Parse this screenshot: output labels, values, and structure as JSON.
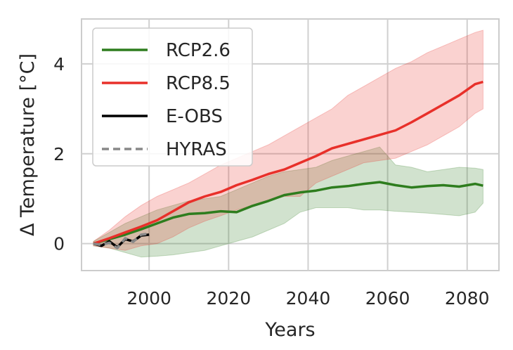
{
  "chart_data": {
    "type": "line",
    "title": "",
    "xlabel": "Years",
    "ylabel": "Δ Temperature [°C]",
    "xlim": [
      1983,
      2088
    ],
    "ylim": [
      -0.6,
      5.0
    ],
    "xticks": [
      2000,
      2020,
      2040,
      2060,
      2080
    ],
    "yticks": [
      0,
      2,
      4
    ],
    "grid": true,
    "legend_position": "top-left",
    "series": [
      {
        "name": "RCP2.6",
        "color": "#2e7d1e",
        "style": "solid",
        "x": [
          1986,
          1990,
          1994,
          1998,
          2002,
          2006,
          2010,
          2014,
          2018,
          2022,
          2026,
          2030,
          2034,
          2038,
          2042,
          2046,
          2050,
          2054,
          2058,
          2062,
          2066,
          2070,
          2074,
          2078,
          2082,
          2084
        ],
        "y": [
          0.0,
          0.1,
          0.2,
          0.32,
          0.45,
          0.58,
          0.66,
          0.68,
          0.72,
          0.7,
          0.84,
          0.95,
          1.08,
          1.14,
          1.18,
          1.25,
          1.28,
          1.33,
          1.37,
          1.3,
          1.25,
          1.28,
          1.3,
          1.27,
          1.33,
          1.29
        ],
        "band_lower": [
          -0.05,
          -0.1,
          -0.2,
          -0.3,
          -0.28,
          -0.25,
          -0.2,
          -0.15,
          -0.05,
          0.05,
          0.15,
          0.3,
          0.45,
          0.7,
          0.8,
          0.8,
          0.8,
          0.75,
          0.75,
          0.72,
          0.7,
          0.68,
          0.65,
          0.62,
          0.7,
          0.9
        ],
        "band_upper": [
          0.05,
          0.25,
          0.45,
          0.6,
          0.75,
          0.85,
          0.95,
          1.0,
          1.05,
          1.2,
          1.35,
          1.5,
          1.6,
          1.65,
          1.7,
          1.85,
          1.95,
          2.05,
          2.15,
          1.75,
          1.7,
          1.6,
          1.65,
          1.7,
          1.68,
          1.65
        ]
      },
      {
        "name": "RCP8.5",
        "color": "#e8302a",
        "style": "solid",
        "x": [
          1986,
          1990,
          1994,
          1998,
          2002,
          2006,
          2010,
          2014,
          2018,
          2022,
          2026,
          2030,
          2034,
          2038,
          2042,
          2046,
          2050,
          2054,
          2058,
          2062,
          2066,
          2070,
          2074,
          2078,
          2082,
          2084
        ],
        "y": [
          0.0,
          0.12,
          0.25,
          0.38,
          0.52,
          0.72,
          0.92,
          1.05,
          1.15,
          1.3,
          1.42,
          1.55,
          1.65,
          1.8,
          1.95,
          2.12,
          2.22,
          2.32,
          2.42,
          2.52,
          2.7,
          2.9,
          3.1,
          3.3,
          3.55,
          3.6
        ],
        "band_lower": [
          -0.05,
          -0.1,
          -0.15,
          -0.05,
          0.0,
          0.15,
          0.35,
          0.5,
          0.62,
          0.75,
          0.85,
          0.95,
          1.05,
          1.05,
          1.35,
          1.5,
          1.65,
          1.8,
          1.85,
          1.9,
          2.05,
          2.2,
          2.4,
          2.6,
          2.9,
          3.0
        ],
        "band_upper": [
          0.05,
          0.3,
          0.6,
          0.85,
          1.05,
          1.2,
          1.35,
          1.55,
          1.75,
          1.9,
          2.05,
          2.2,
          2.4,
          2.6,
          2.8,
          3.0,
          3.3,
          3.5,
          3.7,
          3.9,
          4.05,
          4.25,
          4.4,
          4.55,
          4.7,
          4.75
        ]
      },
      {
        "name": "E-OBS",
        "color": "#000000",
        "style": "solid",
        "x": [
          1986,
          1988,
          1990,
          1992,
          1994,
          1996,
          1998,
          2000
        ],
        "y": [
          0.0,
          -0.05,
          0.05,
          -0.08,
          0.1,
          0.05,
          0.18,
          0.2
        ]
      },
      {
        "name": "HYRAS",
        "color": "#888888",
        "style": "dashed",
        "x": [
          1986,
          1988,
          1990,
          1992,
          1994,
          1996,
          1998,
          2000
        ],
        "y": [
          0.0,
          -0.03,
          0.02,
          -0.1,
          0.12,
          0.04,
          0.2,
          0.22
        ]
      }
    ]
  }
}
